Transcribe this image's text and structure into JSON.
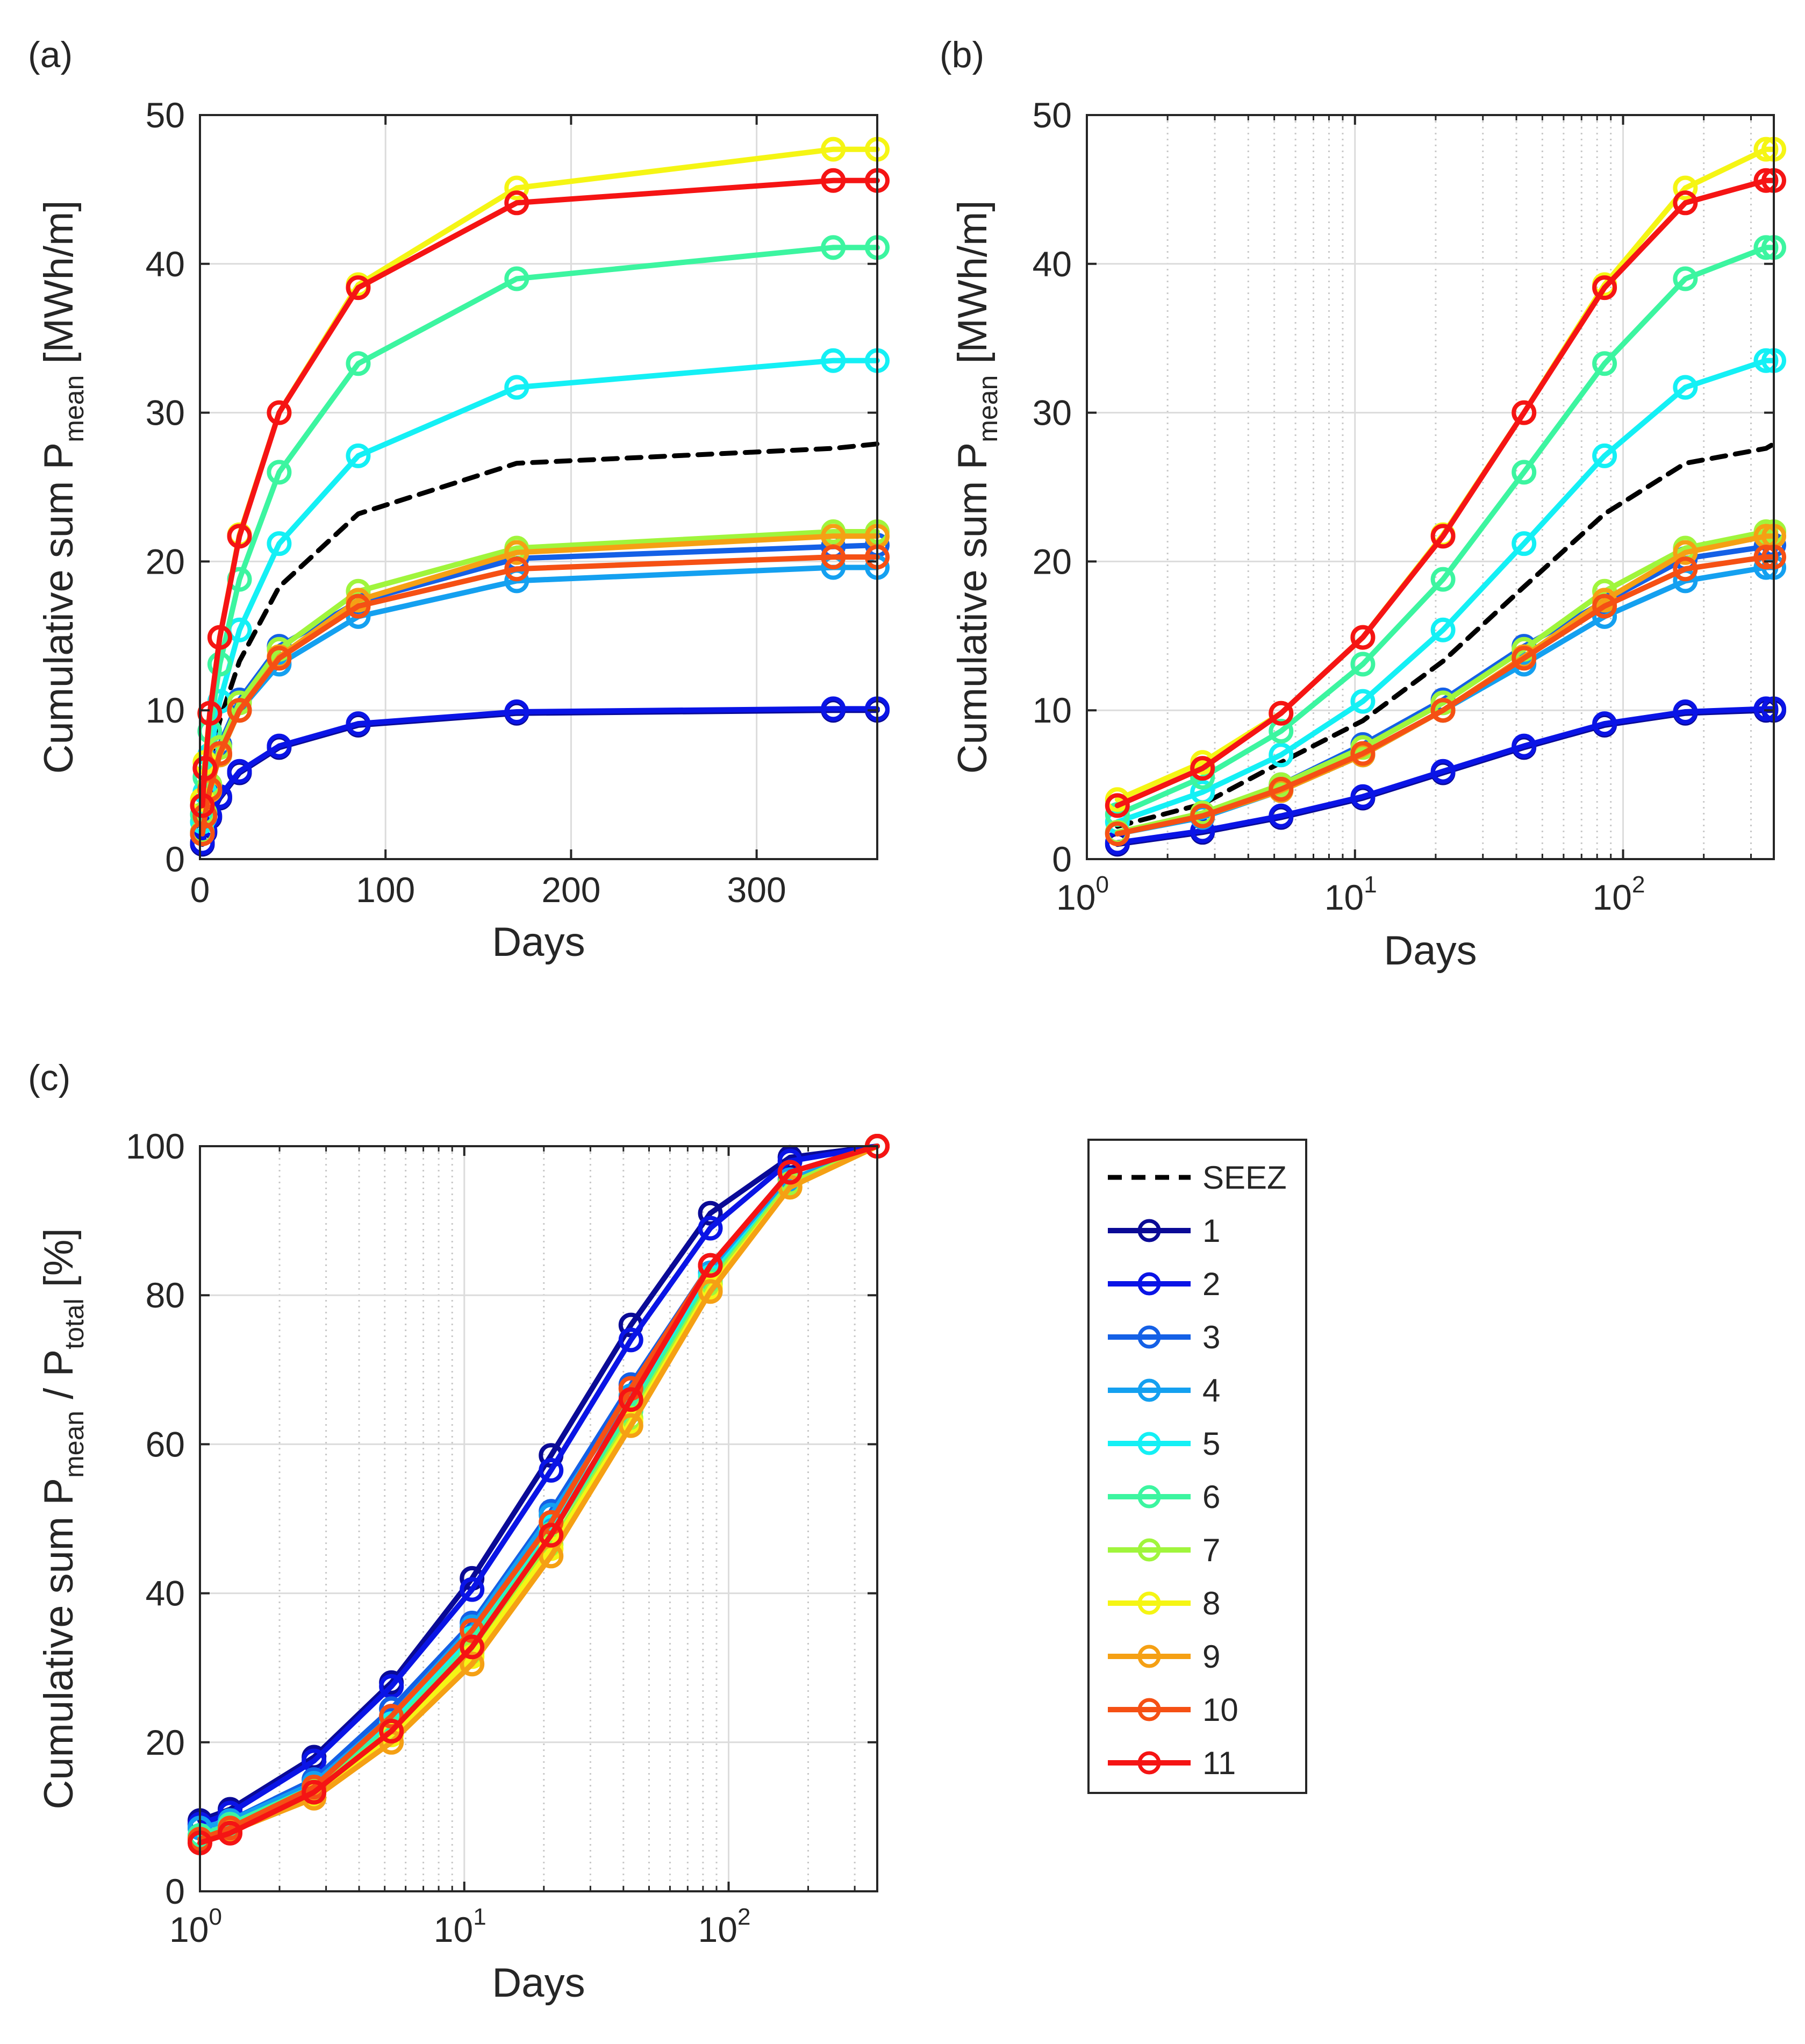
{
  "figure": {
    "panel_labels": [
      "(a)",
      "(b)",
      "(c)"
    ],
    "legend": {
      "entries": [
        {
          "label": "SEEZ",
          "color": "#000000",
          "style": "dashed"
        },
        {
          "label": "1",
          "color": "#0A0A96",
          "style": "marker"
        },
        {
          "label": "2",
          "color": "#0A14E6",
          "style": "marker"
        },
        {
          "label": "3",
          "color": "#1460E6",
          "style": "marker"
        },
        {
          "label": "4",
          "color": "#14A0F0",
          "style": "marker"
        },
        {
          "label": "5",
          "color": "#14F0F5",
          "style": "marker"
        },
        {
          "label": "6",
          "color": "#3CF5A0",
          "style": "marker"
        },
        {
          "label": "7",
          "color": "#A0F53C",
          "style": "marker"
        },
        {
          "label": "8",
          "color": "#F5F514",
          "style": "marker"
        },
        {
          "label": "9",
          "color": "#F5A014",
          "style": "marker"
        },
        {
          "label": "10",
          "color": "#F55014",
          "style": "marker"
        },
        {
          "label": "11",
          "color": "#F51414",
          "style": "marker"
        }
      ]
    }
  },
  "chart_data": [
    {
      "panel": "(a)",
      "type": "line",
      "xscale": "linear",
      "xlabel": "Days",
      "ylabel": "Cumulative sum P",
      "ylabel_sub": "mean",
      "ylabel_unit": " [MWh/m]",
      "xlim": [
        0,
        365
      ],
      "ylim": [
        0,
        50
      ],
      "xticks": [
        0,
        100,
        200,
        300
      ],
      "yticks": [
        0,
        10,
        20,
        30,
        40,
        50
      ],
      "grid": true,
      "x": [
        1.3,
        2.7,
        5.3,
        10.7,
        21.3,
        42.7,
        85.3,
        170.7,
        341.3,
        365
      ],
      "series": [
        {
          "name": "SEEZ",
          "dashed": true,
          "values": [
            2.2,
            3.7,
            6.5,
            9.3,
            13.3,
            18.3,
            23.2,
            26.6,
            27.6,
            27.9
          ]
        },
        {
          "name": "1",
          "values": [
            1.0,
            1.8,
            2.8,
            4.1,
            5.8,
            7.5,
            9.0,
            9.8,
            10.0,
            10.0
          ]
        },
        {
          "name": "2",
          "values": [
            1.1,
            1.9,
            2.9,
            4.2,
            5.9,
            7.6,
            9.1,
            9.9,
            10.1,
            10.1
          ]
        },
        {
          "name": "3",
          "values": [
            1.8,
            3.0,
            5.0,
            7.7,
            10.7,
            14.3,
            17.3,
            20.2,
            21.0,
            21.1
          ]
        },
        {
          "name": "4",
          "values": [
            1.7,
            2.8,
            4.6,
            7.0,
            10.0,
            13.1,
            16.3,
            18.7,
            19.6,
            19.6
          ]
        },
        {
          "name": "5",
          "values": [
            2.5,
            4.5,
            7.0,
            10.6,
            15.4,
            21.2,
            27.1,
            31.7,
            33.5,
            33.5
          ]
        },
        {
          "name": "6",
          "values": [
            3.0,
            5.5,
            8.6,
            13.1,
            18.8,
            26.0,
            33.3,
            39.0,
            41.1,
            41.1
          ]
        },
        {
          "name": "7",
          "values": [
            1.8,
            3.1,
            5.0,
            7.5,
            10.5,
            14.1,
            18.0,
            20.9,
            22.0,
            22.0
          ]
        },
        {
          "name": "8",
          "values": [
            4.0,
            6.5,
            9.8,
            14.9,
            21.8,
            30.0,
            38.6,
            45.1,
            47.7,
            47.7
          ]
        },
        {
          "name": "9",
          "values": [
            1.7,
            2.9,
            4.6,
            7.0,
            10.0,
            13.6,
            17.4,
            20.6,
            21.7,
            21.7
          ]
        },
        {
          "name": "10",
          "values": [
            1.7,
            2.9,
            4.7,
            7.1,
            10.0,
            13.5,
            17.0,
            19.5,
            20.3,
            20.3
          ]
        },
        {
          "name": "11",
          "values": [
            3.6,
            6.1,
            9.8,
            14.9,
            21.7,
            30.0,
            38.4,
            44.1,
            45.6,
            45.6
          ]
        }
      ]
    },
    {
      "panel": "(b)",
      "type": "line",
      "xscale": "log",
      "xlabel": "Days",
      "ylabel": "Cumulative sum P",
      "ylabel_sub": "mean",
      "ylabel_unit": " [MWh/m]",
      "xlim": [
        1,
        365
      ],
      "ylim": [
        0,
        50
      ],
      "xticks": [
        1,
        10,
        100
      ],
      "xtick_labels": [
        {
          "base": "10",
          "exp": "0"
        },
        {
          "base": "10",
          "exp": "1"
        },
        {
          "base": "10",
          "exp": "2"
        }
      ],
      "yticks": [
        0,
        10,
        20,
        30,
        40,
        50
      ],
      "grid": true,
      "x": [
        1.3,
        2.7,
        5.3,
        10.7,
        21.3,
        42.7,
        85.3,
        170.7,
        341.3,
        365
      ],
      "series": [
        {
          "name": "SEEZ",
          "dashed": true,
          "values": [
            2.2,
            3.7,
            6.5,
            9.3,
            13.3,
            18.3,
            23.2,
            26.6,
            27.6,
            27.9
          ]
        },
        {
          "name": "1",
          "values": [
            1.0,
            1.8,
            2.8,
            4.1,
            5.8,
            7.5,
            9.0,
            9.8,
            10.0,
            10.0
          ]
        },
        {
          "name": "2",
          "values": [
            1.1,
            1.9,
            2.9,
            4.2,
            5.9,
            7.6,
            9.1,
            9.9,
            10.1,
            10.1
          ]
        },
        {
          "name": "3",
          "values": [
            1.8,
            3.0,
            5.0,
            7.7,
            10.7,
            14.3,
            17.3,
            20.2,
            21.0,
            21.1
          ]
        },
        {
          "name": "4",
          "values": [
            1.7,
            2.8,
            4.6,
            7.0,
            10.0,
            13.1,
            16.3,
            18.7,
            19.6,
            19.6
          ]
        },
        {
          "name": "5",
          "values": [
            2.5,
            4.5,
            7.0,
            10.6,
            15.4,
            21.2,
            27.1,
            31.7,
            33.5,
            33.5
          ]
        },
        {
          "name": "6",
          "values": [
            3.0,
            5.5,
            8.6,
            13.1,
            18.8,
            26.0,
            33.3,
            39.0,
            41.1,
            41.1
          ]
        },
        {
          "name": "7",
          "values": [
            1.8,
            3.1,
            5.0,
            7.5,
            10.5,
            14.1,
            18.0,
            20.9,
            22.0,
            22.0
          ]
        },
        {
          "name": "8",
          "values": [
            4.0,
            6.5,
            9.8,
            14.9,
            21.8,
            30.0,
            38.6,
            45.1,
            47.7,
            47.7
          ]
        },
        {
          "name": "9",
          "values": [
            1.7,
            2.9,
            4.6,
            7.0,
            10.0,
            13.6,
            17.4,
            20.6,
            21.7,
            21.7
          ]
        },
        {
          "name": "10",
          "values": [
            1.7,
            2.9,
            4.7,
            7.1,
            10.0,
            13.5,
            17.0,
            19.5,
            20.3,
            20.3
          ]
        },
        {
          "name": "11",
          "values": [
            3.6,
            6.1,
            9.8,
            14.9,
            21.7,
            30.0,
            38.4,
            44.1,
            45.6,
            45.6
          ]
        }
      ]
    },
    {
      "panel": "(c)",
      "type": "line",
      "xscale": "log",
      "xlabel": "Days",
      "ylabel": "Cumulative sum P",
      "ylabel_sub": "mean",
      "ylabel_mid": " / P",
      "ylabel_sub2": "total",
      "ylabel_unit": " [%]",
      "xlim": [
        1,
        365
      ],
      "ylim": [
        0,
        100
      ],
      "xticks": [
        1,
        10,
        100
      ],
      "xtick_labels": [
        {
          "base": "10",
          "exp": "0"
        },
        {
          "base": "10",
          "exp": "1"
        },
        {
          "base": "10",
          "exp": "2"
        }
      ],
      "yticks": [
        0,
        20,
        40,
        60,
        80,
        100
      ],
      "grid": true,
      "x": [
        1.0,
        1.3,
        2.7,
        5.3,
        10.7,
        21.3,
        42.7,
        85.3,
        170.7,
        365
      ],
      "series": [
        {
          "name": "1",
          "values": [
            9.5,
            11.0,
            18.0,
            28.0,
            42.0,
            58.5,
            76.0,
            91.0,
            98.5,
            100
          ]
        },
        {
          "name": "2",
          "values": [
            9.0,
            10.5,
            17.5,
            27.5,
            40.5,
            56.5,
            74.0,
            89.0,
            98.0,
            100
          ]
        },
        {
          "name": "3",
          "values": [
            8.5,
            9.5,
            15.0,
            24.5,
            36.0,
            51.0,
            68.0,
            84.0,
            96.5,
            100
          ]
        },
        {
          "name": "4",
          "values": [
            8.5,
            9.5,
            14.5,
            23.5,
            35.5,
            50.5,
            66.5,
            83.0,
            95.5,
            100
          ]
        },
        {
          "name": "5",
          "values": [
            7.5,
            9.0,
            14.0,
            22.5,
            34.0,
            49.0,
            65.0,
            82.5,
            95.0,
            100
          ]
        },
        {
          "name": "6",
          "values": [
            7.5,
            9.0,
            14.0,
            22.0,
            33.5,
            48.0,
            64.5,
            82.0,
            95.0,
            100
          ]
        },
        {
          "name": "7",
          "values": [
            7.0,
            8.5,
            13.5,
            21.5,
            32.0,
            46.5,
            63.5,
            81.5,
            95.0,
            100
          ]
        },
        {
          "name": "8",
          "values": [
            7.0,
            8.0,
            13.0,
            21.0,
            31.5,
            46.0,
            63.0,
            81.0,
            94.5,
            100
          ]
        },
        {
          "name": "9",
          "values": [
            7.0,
            8.0,
            12.5,
            20.0,
            30.5,
            45.0,
            62.5,
            80.5,
            94.5,
            100
          ]
        },
        {
          "name": "10",
          "values": [
            7.0,
            8.5,
            14.0,
            23.5,
            35.0,
            49.5,
            67.5,
            84.0,
            96.5,
            100
          ]
        },
        {
          "name": "11",
          "values": [
            6.5,
            7.8,
            13.3,
            21.5,
            32.8,
            47.8,
            66.0,
            84.0,
            96.5,
            100
          ]
        }
      ]
    }
  ]
}
